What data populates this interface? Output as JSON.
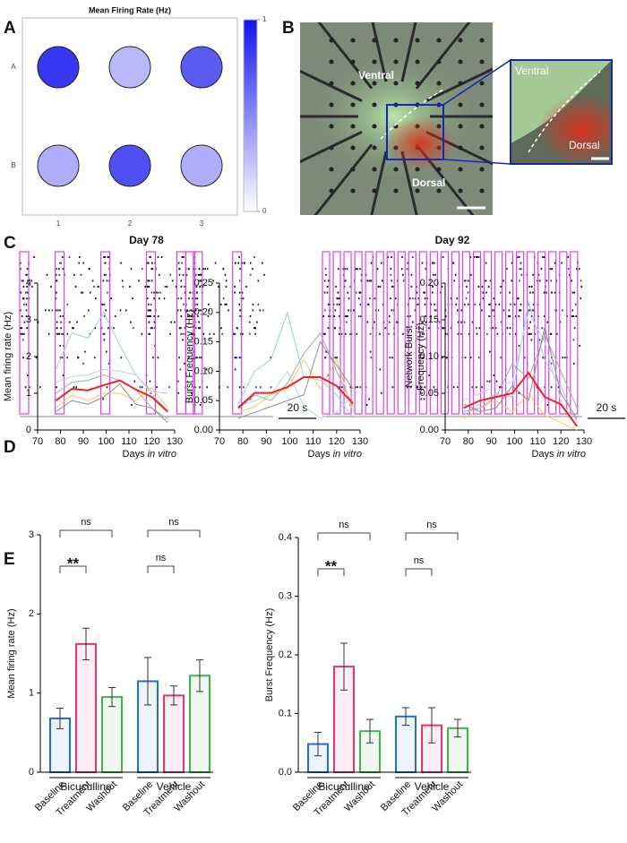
{
  "panel_labels": [
    "A",
    "B",
    "C",
    "D",
    "E"
  ],
  "chart_data": [
    {
      "type": "dot_grid",
      "title": "Mean Firing Rate (Hz)",
      "rows": [
        "A",
        "B"
      ],
      "columns": [
        1,
        2,
        3
      ],
      "values": [
        [
          0.85,
          0.3,
          0.7
        ],
        [
          0.35,
          0.75,
          0.35
        ]
      ],
      "color": "#1414ee",
      "colorbar": {
        "lim": [
          0,
          1
        ],
        "ticks": [
          0,
          1
        ]
      }
    },
    {
      "type": "image",
      "labels": [
        "Ventral",
        "Dorsal"
      ],
      "inset_labels": [
        "Ventral",
        "Dorsal"
      ]
    },
    {
      "type": "raster",
      "panels": [
        {
          "title": "Day 78",
          "scale_label": "20 s"
        },
        {
          "title": "Day 92",
          "scale_label": "20 s"
        }
      ]
    },
    {
      "type": "line",
      "ylabel": "Mean firing rate (Hz)",
      "xlabel": [
        "Days",
        "in vitro"
      ],
      "x": [
        78,
        85,
        92,
        99,
        106,
        113,
        120,
        127
      ],
      "xlim": [
        70,
        130
      ],
      "xticks": [
        70,
        80,
        90,
        100,
        110,
        120,
        130
      ],
      "ylim": [
        0,
        4
      ],
      "yticks": [
        0,
        1,
        2,
        3,
        4
      ],
      "series": [
        {
          "color": "#9cc8ec",
          "values": [
            1.65,
            2.65,
            2.5,
            3.2,
            2.3,
            1.5,
            1.05,
            1.0
          ]
        },
        {
          "color": "#b5d4f0",
          "values": [
            1.3,
            1.45,
            1.5,
            1.65,
            1.6,
            1.5,
            1.0,
            0.5
          ]
        },
        {
          "color": "#a8a8a8",
          "values": [
            1.0,
            1.3,
            1.35,
            1.5,
            1.35,
            1.1,
            0.6,
            0.3
          ]
        },
        {
          "color": "#f3c95a",
          "values": [
            0.6,
            0.95,
            0.8,
            1.0,
            1.0,
            0.8,
            1.15,
            0.6
          ]
        },
        {
          "color": "#8e8e8e",
          "values": [
            0.5,
            0.8,
            0.7,
            0.9,
            1.25,
            0.7,
            0.6,
            0.2
          ]
        },
        {
          "color": "#e8261f",
          "values": [
            0.8,
            1.12,
            1.08,
            1.22,
            1.35,
            1.1,
            0.9,
            0.5
          ]
        }
      ]
    },
    {
      "type": "line",
      "ylabel": "Burst Frequency (Hz)",
      "xlabel": [
        "Days",
        "in vitro"
      ],
      "x": [
        78,
        85,
        92,
        99,
        106,
        113,
        120,
        127
      ],
      "xlim": [
        70,
        130
      ],
      "xticks": [
        70,
        80,
        90,
        100,
        110,
        120,
        130
      ],
      "ylim": [
        0,
        0.25
      ],
      "yticks": [
        {
          "value": 0,
          "label": "0.00"
        },
        {
          "value": 0.05,
          "label": "0.05"
        },
        {
          "value": 0.1,
          "label": "0.10"
        },
        {
          "value": 0.15,
          "label": "0.15"
        },
        {
          "value": 0.2,
          "label": "0.20"
        },
        {
          "value": 0.25,
          "label": "0.25"
        }
      ],
      "series": [
        {
          "color": "#9cc8ec",
          "values": [
            0.045,
            0.1,
            0.12,
            0.2,
            0.09,
            0.085,
            0.06,
            0.02
          ]
        },
        {
          "color": "#b5d4f0",
          "values": [
            0.04,
            0.05,
            0.06,
            0.1,
            0.04,
            0.02,
            0.03,
            0.06
          ]
        },
        {
          "color": "#a8a8a8",
          "values": [
            0.035,
            0.06,
            0.05,
            0.08,
            0.13,
            0.165,
            0.1,
            0.04
          ]
        },
        {
          "color": "#f3c95a",
          "values": [
            0.03,
            0.04,
            0.06,
            0.07,
            0.12,
            0.07,
            0.12,
            0.03
          ]
        },
        {
          "color": "#8e8e8e",
          "values": [
            0.02,
            0.03,
            0.04,
            0.05,
            0.06,
            0.15,
            0.11,
            0.07
          ]
        },
        {
          "color": "#e8261f",
          "values": [
            0.038,
            0.063,
            0.063,
            0.073,
            0.09,
            0.09,
            0.075,
            0.045
          ]
        }
      ]
    },
    {
      "type": "line",
      "ylabel": [
        "Network Burst",
        "Frequency (Hz)"
      ],
      "xlabel": [
        "Days",
        "in vitro"
      ],
      "x": [
        78,
        85,
        92,
        99,
        106,
        113,
        120,
        127
      ],
      "xlim": [
        70,
        130
      ],
      "xticks": [
        70,
        80,
        90,
        100,
        110,
        120,
        130
      ],
      "ylim": [
        0,
        0.2
      ],
      "yticks": [
        {
          "value": 0,
          "label": "0.00"
        },
        {
          "value": 0.05,
          "label": "0.05"
        },
        {
          "value": 0.1,
          "label": "0.10"
        },
        {
          "value": 0.15,
          "label": "0.15"
        },
        {
          "value": 0.2,
          "label": "0.20"
        }
      ],
      "series": [
        {
          "color": "#9cc8ec",
          "values": [
            0.02,
            0.035,
            0.05,
            0.045,
            0.175,
            0.095,
            0.06,
            0.01
          ]
        },
        {
          "color": "#b5d4f0",
          "values": [
            0.04,
            0.05,
            0.06,
            0.065,
            0.16,
            0.12,
            0.04,
            0.005
          ]
        },
        {
          "color": "#a8a8a8",
          "values": [
            0.025,
            0.03,
            0.045,
            0.09,
            0.07,
            0.13,
            0.08,
            0.03
          ]
        },
        {
          "color": "#f3c95a",
          "values": [
            0.015,
            0.03,
            0.04,
            0.025,
            0.05,
            0.02,
            0.01,
            0.0
          ]
        },
        {
          "color": "#8e8e8e",
          "values": [
            0.035,
            0.025,
            0.03,
            0.06,
            0.04,
            0.14,
            0.05,
            0.015
          ]
        },
        {
          "color": "#e8261f",
          "values": [
            0.03,
            0.04,
            0.045,
            0.05,
            0.078,
            0.045,
            0.035,
            0.005
          ]
        }
      ]
    },
    {
      "type": "bar",
      "ylabel": "Mean firing rate (Hz)",
      "categories": [
        "Baseline",
        "Treatment",
        "Washout",
        "Baseline",
        "Treatment",
        "Washout"
      ],
      "groups": [
        "Bicuculline",
        "Vehicle"
      ],
      "values": [
        0.68,
        1.62,
        0.95,
        1.15,
        0.97,
        1.22
      ],
      "errors": [
        0.13,
        0.2,
        0.12,
        0.3,
        0.12,
        0.2
      ],
      "colors": [
        "#1f6fd6",
        "#e8336b",
        "#3cb84a",
        "#1f6fd6",
        "#e8336b",
        "#3cb84a"
      ],
      "ylim": [
        0,
        3
      ],
      "yticks": [
        0,
        1,
        2,
        3
      ],
      "annotations": [
        {
          "text": "**",
          "pair": [
            0,
            1
          ]
        },
        {
          "text": "ns",
          "pair": [
            0,
            2
          ]
        },
        {
          "text": "ns",
          "pair": [
            3,
            4
          ]
        },
        {
          "text": "ns",
          "pair": [
            3,
            5
          ]
        }
      ]
    },
    {
      "type": "bar",
      "ylabel": "Burst Frequency (Hz)",
      "categories": [
        "Baseline",
        "Treatment",
        "Washout",
        "Baseline",
        "Treatment",
        "Washout"
      ],
      "groups": [
        "Bicuculline",
        "Vehicle"
      ],
      "values": [
        0.048,
        0.18,
        0.07,
        0.095,
        0.08,
        0.075
      ],
      "errors": [
        0.02,
        0.04,
        0.02,
        0.015,
        0.03,
        0.015
      ],
      "colors": [
        "#1f6fd6",
        "#e8336b",
        "#3cb84a",
        "#1f6fd6",
        "#e8336b",
        "#3cb84a"
      ],
      "ylim": [
        0,
        0.4
      ],
      "yticks": [
        {
          "value": 0,
          "label": "0.0"
        },
        {
          "value": 0.1,
          "label": "0.1"
        },
        {
          "value": 0.2,
          "label": "0.2"
        },
        {
          "value": 0.3,
          "label": "0.3"
        },
        {
          "value": 0.4,
          "label": "0.4"
        }
      ],
      "annotations": [
        {
          "text": "**",
          "pair": [
            0,
            1
          ]
        },
        {
          "text": "ns",
          "pair": [
            0,
            2
          ]
        },
        {
          "text": "ns",
          "pair": [
            3,
            4
          ]
        },
        {
          "text": "ns",
          "pair": [
            3,
            5
          ]
        }
      ]
    }
  ]
}
